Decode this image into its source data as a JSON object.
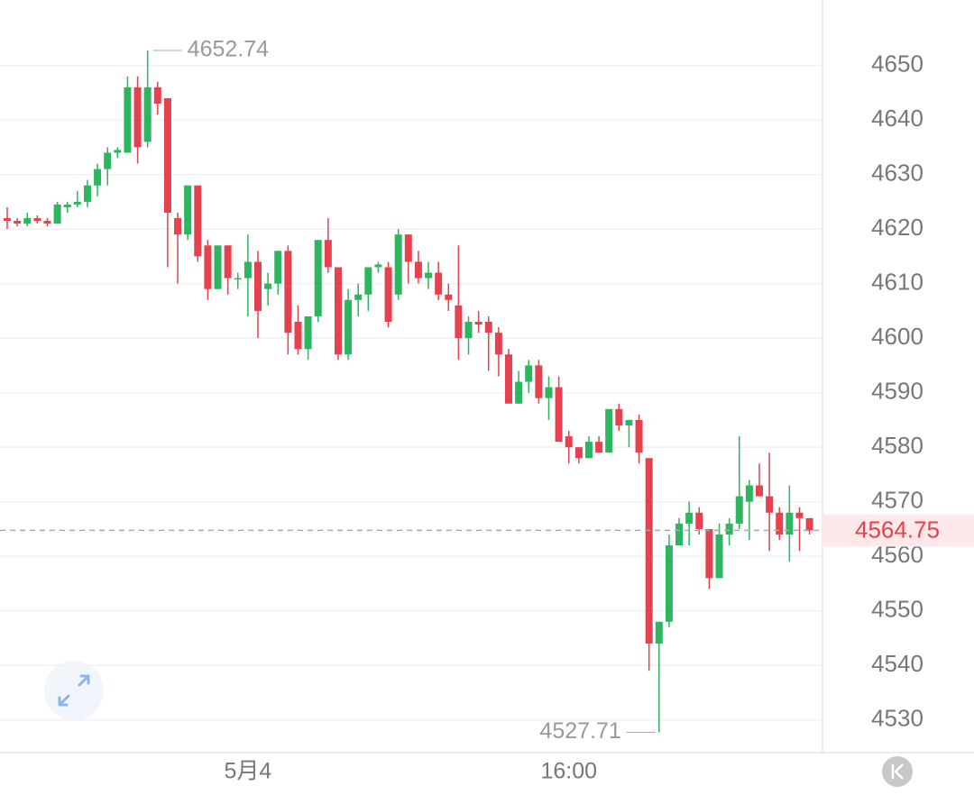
{
  "chart_data": {
    "type": "candlestick",
    "categories": [
      null,
      null,
      null,
      null,
      null,
      null,
      null,
      null,
      null,
      null,
      null,
      null,
      null,
      null,
      null,
      null,
      null,
      null,
      null,
      null,
      null,
      null,
      null,
      null,
      "5月4",
      null,
      null,
      null,
      null,
      null,
      null,
      null,
      null,
      null,
      null,
      null,
      null,
      null,
      null,
      null,
      null,
      null,
      null,
      null,
      null,
      null,
      null,
      null,
      null,
      null,
      null,
      null,
      null,
      null,
      null,
      null,
      "16:00",
      null,
      null,
      null,
      null,
      null,
      null,
      null,
      null,
      null,
      null,
      null,
      null,
      null,
      null,
      null,
      null,
      null,
      null,
      null,
      null,
      null,
      null,
      null,
      null
    ],
    "open": [
      4622,
      4621.5,
      4621,
      4622,
      4621.5,
      4621,
      4624,
      4624.5,
      4625,
      4628,
      4631,
      4634,
      4634,
      4646,
      4636,
      4646,
      4644,
      4622,
      4619,
      4628,
      4617,
      4609,
      4617,
      4611,
      4611,
      4614,
      4609,
      4610,
      4616,
      4603,
      4598,
      4604,
      4618,
      4613,
      4597,
      4607,
      4608,
      4613,
      4613,
      4608,
      4619,
      4614,
      4611,
      4612,
      4608,
      4606,
      4600,
      4603,
      4603,
      4601,
      4597,
      4588,
      4592,
      4595,
      4589,
      4591,
      4582,
      4580,
      4578,
      4581,
      4579,
      4587,
      4584,
      4585,
      4578,
      4544,
      4548,
      4562,
      4566,
      4568,
      4565,
      4556,
      4564,
      4566,
      4570,
      4573,
      4571,
      4568,
      4564,
      4568,
      4567
    ],
    "high": [
      4624,
      4622,
      4623,
      4622.5,
      4622,
      4625,
      4625,
      4627,
      4629,
      4632,
      4635,
      4635,
      4648,
      4648,
      4652.74,
      4647,
      4644,
      4623,
      4628,
      4628,
      4618,
      4617,
      4617,
      4612,
      4619,
      4616,
      4612,
      4616,
      4617,
      4606,
      4604,
      4618,
      4622,
      4613,
      4609,
      4610,
      4613,
      4614,
      4614,
      4620,
      4619,
      4616,
      4614,
      4614,
      4610,
      4617,
      4604,
      4605,
      4604,
      4602,
      4598,
      4594,
      4596,
      4596,
      4593,
      4593,
      4583,
      4580,
      4582,
      4582,
      4587,
      4588,
      4585,
      4586,
      4578,
      4548,
      4564,
      4567,
      4570,
      4569,
      4565,
      4566,
      4567,
      4582,
      4574,
      4577,
      4579,
      4569,
      4573,
      4569,
      4567
    ],
    "low": [
      4620,
      4620.5,
      4620.5,
      4621,
      4620.5,
      4621,
      4623,
      4624,
      4624,
      4626,
      4628,
      4633,
      4634,
      4632,
      4635,
      4641,
      4613,
      4610,
      4618,
      4614,
      4607,
      4609,
      4608,
      4609,
      4604,
      4600,
      4606,
      4608,
      4597,
      4597,
      4596,
      4603,
      4612,
      4596,
      4596,
      4604,
      4605,
      4612,
      4602,
      4607,
      4610,
      4610,
      4609,
      4607,
      4605,
      4596,
      4597,
      4601,
      4594,
      4593,
      4588,
      4588,
      4590,
      4588,
      4585,
      4581,
      4577,
      4577,
      4578,
      4579,
      4579,
      4583,
      4580,
      4577,
      4539,
      4527.71,
      4547,
      4562,
      4562,
      4564,
      4554,
      4556,
      4562,
      4565,
      4563,
      4571,
      4561,
      4563,
      4559,
      4561,
      4564
    ],
    "close": [
      4621.5,
      4621,
      4622,
      4621.5,
      4621,
      4624.5,
      4624.5,
      4625,
      4628,
      4631,
      4634,
      4634.5,
      4646,
      4635,
      4646,
      4643,
      4623,
      4619,
      4628,
      4615,
      4609,
      4617,
      4611,
      4611,
      4614,
      4605,
      4610,
      4616,
      4601,
      4598,
      4604,
      4618,
      4613,
      4597,
      4607,
      4608,
      4613,
      4613.5,
      4603,
      4619,
      4614,
      4611,
      4612,
      4608,
      4607,
      4600,
      4603,
      4602.5,
      4601,
      4597,
      4588,
      4592,
      4595,
      4589,
      4591,
      4581,
      4580,
      4578,
      4581,
      4579,
      4587,
      4584,
      4585,
      4579,
      4544,
      4548,
      4562,
      4566,
      4568,
      4565,
      4556,
      4564,
      4566,
      4571,
      4573,
      4571,
      4568,
      4564,
      4568,
      4567,
      4564.75
    ],
    "up_color": "#2eb55f",
    "down_color": "#e5414f",
    "ylim": [
      4524,
      4662
    ],
    "yticks": [
      4530,
      4540,
      4550,
      4560,
      4570,
      4580,
      4590,
      4600,
      4610,
      4620,
      4630,
      4640,
      4650
    ],
    "grid": true
  }
}
